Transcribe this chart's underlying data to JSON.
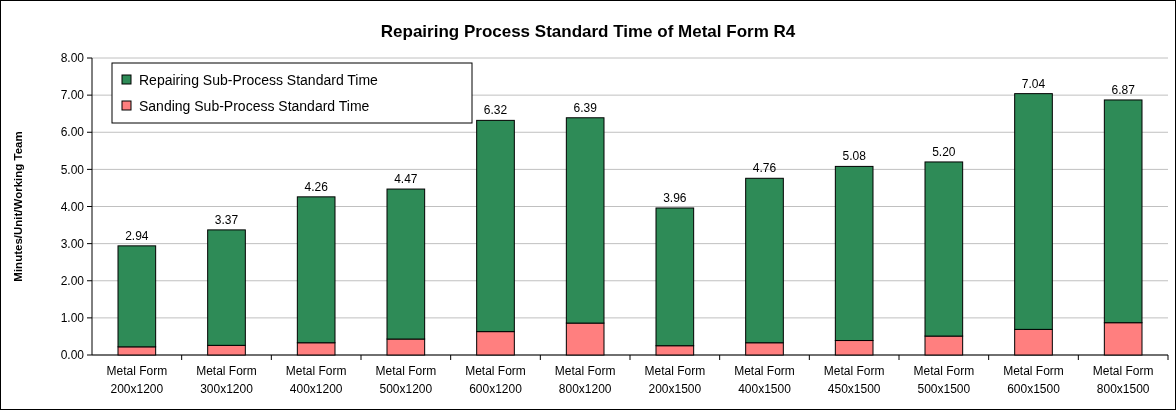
{
  "chart_data": {
    "type": "bar",
    "title": "Repairing Process Standard Time of Metal Form R4",
    "ylabel": "Minutes/Unit/Working Team",
    "categories": [
      "Metal Form 200x1200",
      "Metal Form 300x1200",
      "Metal Form 400x1200",
      "Metal Form 500x1200",
      "Metal Form 600x1200",
      "Metal Form 800x1200",
      "Metal Form 200x1500",
      "Metal Form 400x1500",
      "Metal Form 450x1500",
      "Metal Form 500x1500",
      "Metal Form 600x1500",
      "Metal Form 800x1500"
    ],
    "series": [
      {
        "name": "Sanding Sub-Process Standard Time",
        "color": "#ff7f7f",
        "values": [
          0.22,
          0.26,
          0.33,
          0.43,
          0.63,
          0.86,
          0.25,
          0.33,
          0.39,
          0.51,
          0.69,
          0.87
        ]
      },
      {
        "name": "Repairing Sub-Process Standard Time",
        "color": "#2e8b57",
        "values": [
          2.72,
          3.11,
          3.93,
          4.04,
          5.69,
          5.53,
          3.71,
          4.43,
          4.69,
          4.69,
          6.35,
          6.0
        ]
      }
    ],
    "stacked": true,
    "totals": [
      "2.94",
      "3.37",
      "4.26",
      "4.47",
      "6.32",
      "6.39",
      "3.96",
      "4.76",
      "5.08",
      "5.20",
      "7.04",
      "6.87"
    ],
    "ylim": [
      0,
      8
    ],
    "yticks": [
      {
        "value": 0,
        "label": "0.00"
      },
      {
        "value": 1,
        "label": "1.00"
      },
      {
        "value": 2,
        "label": "2.00"
      },
      {
        "value": 3,
        "label": "3.00"
      },
      {
        "value": 4,
        "label": "4.00"
      },
      {
        "value": 5,
        "label": "5.00"
      },
      {
        "value": 6,
        "label": "6.00"
      },
      {
        "value": 7,
        "label": "7.00"
      },
      {
        "value": 8,
        "label": "8.00"
      }
    ],
    "grid": "y",
    "legend": "top left"
  }
}
